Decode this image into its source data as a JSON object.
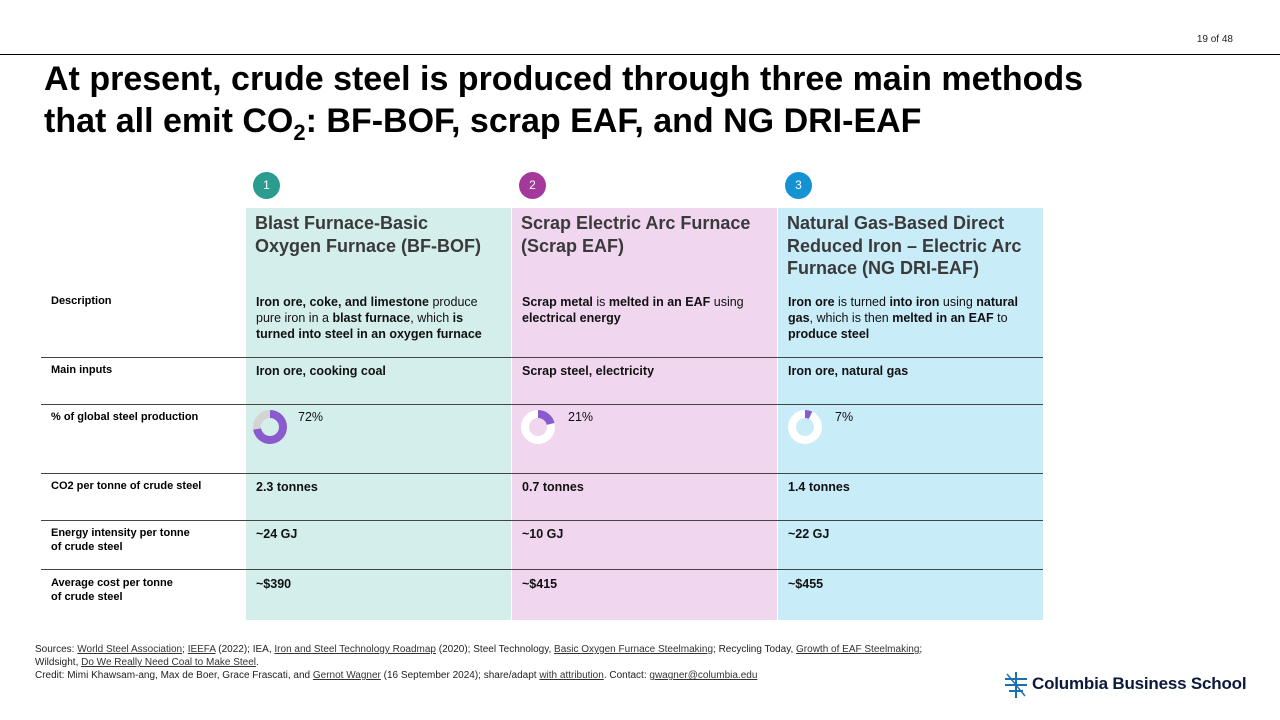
{
  "page_number": "19 of 48",
  "title": {
    "line1": "At present, crude steel is produced through three main methods",
    "line2_a": "that all emit CO",
    "line2_sub": "2",
    "line2_b": ": BF-BOF, scrap EAF, and NG DRI-EAF"
  },
  "colors": {
    "col1": "#d4efeb",
    "col2": "#f0d6ef",
    "col3": "#c9ecf9",
    "badge1": "#2a9d8f",
    "badge2": "#a4389b",
    "badge3": "#1592d2",
    "donut_fill": "#8a5bcf",
    "donut_track": "#d4d4d4"
  },
  "row_labels": {
    "description": "Description",
    "main_inputs": "Main inputs",
    "share": "% of global steel production",
    "co2": "CO2 per tonne of crude steel",
    "energy_l1": "Energy intensity per tonne",
    "energy_l2": "of crude steel",
    "cost_l1": "Average cost per tonne",
    "cost_l2": "of crude steel"
  },
  "columns": [
    {
      "badge": "1",
      "heading": "Blast Furnace-Basic Oxygen Furnace (BF-BOF)",
      "main_inputs": "Iron ore, cooking coal",
      "share_label": "72%",
      "share_fraction": 0.72,
      "co2": "2.3 tonnes",
      "energy": "~24 GJ",
      "cost": "~$390"
    },
    {
      "badge": "2",
      "heading": "Scrap Electric Arc Furnace (Scrap EAF)",
      "main_inputs": "Scrap steel, electricity",
      "share_label": "21%",
      "share_fraction": 0.21,
      "co2": "0.7 tonnes",
      "energy": "~10 GJ",
      "cost": "~$415"
    },
    {
      "badge": "3",
      "heading": "Natural Gas-Based Direct Reduced Iron – Electric Arc Furnace (NG DRI-EAF)",
      "main_inputs": "Iron ore, natural gas",
      "share_label": "7%",
      "share_fraction": 0.07,
      "co2": "1.4 tonnes",
      "energy": "~22 GJ",
      "cost": "~$455"
    }
  ],
  "descriptions": {
    "c1": [
      "Iron ore, coke, and limestone",
      " produce pure iron in a ",
      "blast furnace",
      ", which ",
      "is turned into steel in an oxygen furnace"
    ],
    "c2": [
      "Scrap metal",
      " is ",
      "melted in an EAF",
      " using ",
      "electrical energy"
    ],
    "c3": [
      "Iron ore",
      " is turned ",
      "into iron",
      " using ",
      "natural gas",
      ", which is then ",
      "melted in an EAF",
      " to ",
      "produce steel"
    ]
  },
  "sources": {
    "prefix": "Sources: ",
    "wsa": "World Steel Association",
    "sep1": "; ",
    "ieefa": "IEEFA",
    "t1": " (2022); IEA, ",
    "roadmap": "Iron and Steel Technology Roadmap",
    "t2": " (2020); Steel Technology, ",
    "bos": "Basic Oxygen Furnace Steelmaking",
    "t3": "; Recycling Today, ",
    "eaf": "Growth of EAF Steelmaking",
    "t4": ";",
    "line2_prefix": "Wildsight, ",
    "coal": "Do We Really Need Coal to Make Steel",
    "t5": ".",
    "credit_prefix": "Credit: Mimi Khawsam-ang, Max de Boer, Grace Frascati, and ",
    "gernot": "Gernot Wagner",
    "t6": " (16 September 2024); share/adapt ",
    "attribution": "with attribution",
    "t7": ". Contact: ",
    "email": "gwagner@columbia.edu"
  },
  "logo_text": "Columbia Business School"
}
